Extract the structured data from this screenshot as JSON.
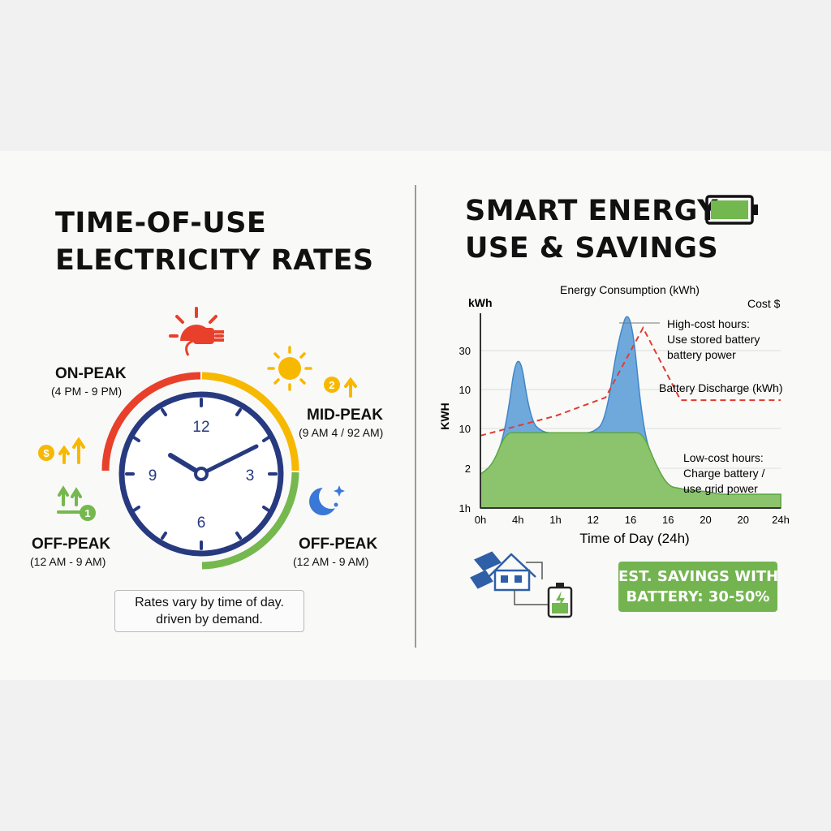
{
  "left": {
    "title": "TIME-OF-USE\nELECTRICITY RATES",
    "on_peak": {
      "label": "ON-PEAK",
      "time": "(4 PM - 9 PM)"
    },
    "mid_peak": {
      "label": "MID-PEAK",
      "time": "(9 AM 4 / 92 AM)"
    },
    "off_peak_left": {
      "label": "OFF-PEAK",
      "time": "(12 AM - 9 AM)"
    },
    "off_peak_right": {
      "label": "OFF-PEAK",
      "time": "(12 AM - 9 AM)"
    },
    "clock_numbers": {
      "n12": "12",
      "n3": "3",
      "n6": "6",
      "n9": "9"
    },
    "badge_dollar": "$",
    "badge_two": "2",
    "badge_one": "1",
    "note": "Rates vary by time of day.\ndriven by demand.",
    "colors": {
      "on_peak": "#e8402b",
      "mid_peak": "#f7b800",
      "off_peak": "#75b84e",
      "clock": "#273a80"
    }
  },
  "right": {
    "title": "SMART ENERGY\nUSE & SAVINGS",
    "savings": "EST. SAVINGS WITH\nBATTERY: 30-50%",
    "colors": {
      "consumption": "#6fa9dc",
      "battery": "#8cc46e",
      "cost": "#e03c31",
      "battery_icon": "#72b84e"
    }
  },
  "chart_data": {
    "type": "area",
    "title": "Energy Consumption (kWh)",
    "xlabel": "Time of Day (24h)",
    "ylabel": "KWH",
    "ylabel_top": "kWh",
    "secondary_axis_label": "Cost $",
    "x_ticks": [
      "0h",
      "4h",
      "1h",
      "12",
      "16",
      "16",
      "20",
      "20",
      "24h"
    ],
    "y_ticks": [
      "1h",
      "2",
      "10",
      "10",
      "30"
    ],
    "grid": true,
    "series": [
      {
        "name": "Energy Consumption (kWh)",
        "color": "#6fa9dc",
        "x": [
          0,
          1,
          2,
          3,
          4,
          5,
          6,
          7,
          8,
          9,
          10,
          11,
          12,
          13,
          14,
          15,
          16,
          17,
          18,
          19,
          20,
          21,
          22,
          23,
          24
        ],
        "y": [
          1.2,
          2,
          6,
          30,
          8,
          6,
          6,
          6,
          6,
          6,
          8,
          30,
          45,
          6,
          2,
          0.5,
          0.4,
          0.3,
          0.3,
          0.2,
          0.2,
          0.2,
          0.2,
          0.2,
          0.2
        ]
      },
      {
        "name": "Battery Discharge (kWh)",
        "color": "#8cc46e"
      },
      {
        "name": "Cost $",
        "color": "#e03c31",
        "style": "dashed"
      }
    ],
    "annotations": [
      "High-cost hours:\nUse stored battery\nbattery power",
      "Battery Discharge (kWh)",
      "Low-cost hours:\nCharge battery /\nuse grid power"
    ]
  }
}
